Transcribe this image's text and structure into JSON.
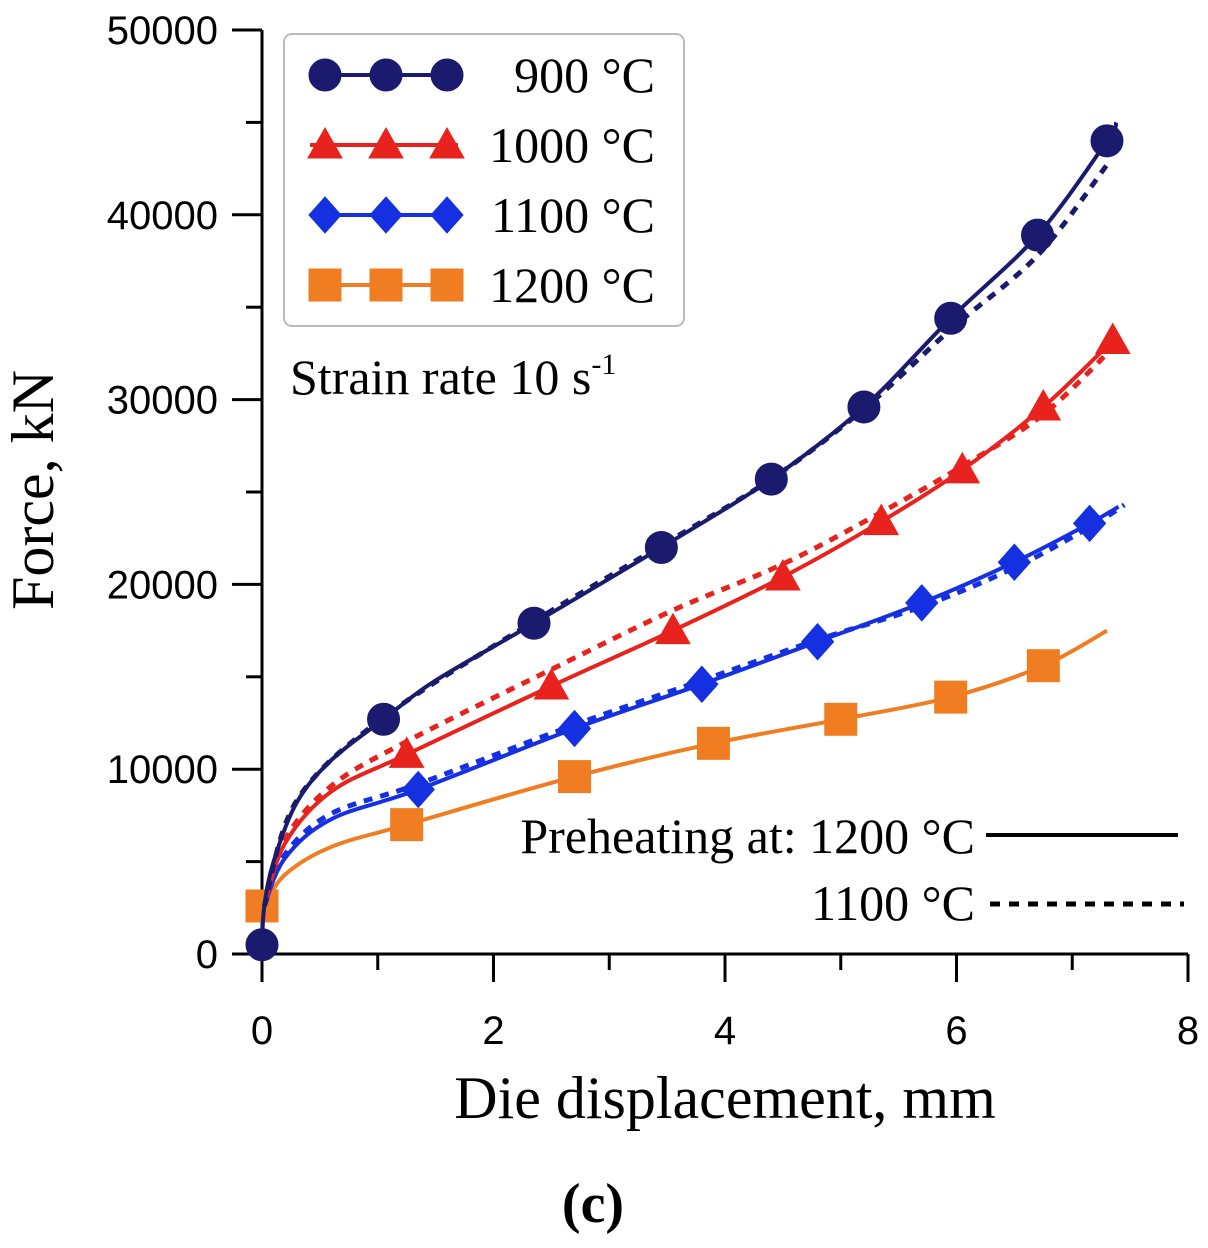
{
  "chart_data": {
    "type": "line",
    "title": "",
    "panel_label": "(c)",
    "xlabel": "Die displacement, mm",
    "ylabel": "Force, kN",
    "xlim": [
      0,
      8
    ],
    "ylim": [
      0,
      50000
    ],
    "x_ticks": [
      "0",
      "2",
      "4",
      "6",
      "8"
    ],
    "y_ticks": [
      "0",
      "10000",
      "20000",
      "30000",
      "40000",
      "50000"
    ],
    "x_tick_values": [
      0,
      2,
      4,
      6,
      8
    ],
    "y_tick_values": [
      0,
      10000,
      20000,
      30000,
      40000,
      50000
    ],
    "annotation": {
      "prefix": "Strain rate 10 s",
      "superscript": "-1"
    },
    "preheating_legend": [
      {
        "label": "Preheating at: 1200 °C",
        "style": "solid"
      },
      {
        "label": "1100 °C",
        "style": "dotted"
      }
    ],
    "series": [
      {
        "name": "900 °C",
        "color": "#1a1a6e",
        "marker": "circle",
        "solid": [
          [
            0,
            500
          ],
          [
            0.02,
            2600
          ],
          [
            0.1,
            5000
          ],
          [
            0.3,
            8200
          ],
          [
            0.6,
            10500
          ],
          [
            1.05,
            12700
          ],
          [
            1.5,
            14800
          ],
          [
            2.35,
            17900
          ],
          [
            3.45,
            22000
          ],
          [
            4.4,
            25700
          ],
          [
            5.2,
            29600
          ],
          [
            5.95,
            34400
          ],
          [
            6.7,
            38900
          ],
          [
            7.3,
            44000
          ],
          [
            7.38,
            45000
          ]
        ],
        "dotted": [
          [
            0.02,
            2600
          ],
          [
            0.3,
            8300
          ],
          [
            1.05,
            12800
          ],
          [
            2.35,
            18000
          ],
          [
            3.45,
            22100
          ],
          [
            4.4,
            25700
          ],
          [
            5.2,
            29500
          ],
          [
            5.95,
            33800
          ],
          [
            6.7,
            37800
          ],
          [
            7.3,
            42700
          ]
        ],
        "markers": [
          [
            0,
            500
          ],
          [
            1.05,
            12700
          ],
          [
            2.35,
            17900
          ],
          [
            3.45,
            22000
          ],
          [
            4.4,
            25700
          ],
          [
            5.2,
            29600
          ],
          [
            5.95,
            34400
          ],
          [
            6.7,
            38900
          ],
          [
            7.3,
            44000
          ]
        ]
      },
      {
        "name": "1000 °C",
        "color": "#e8231e",
        "marker": "triangle",
        "solid": [
          [
            0.02,
            2600
          ],
          [
            0.2,
            6000
          ],
          [
            0.6,
            8800
          ],
          [
            1.25,
            10800
          ],
          [
            2.5,
            14500
          ],
          [
            3.55,
            17500
          ],
          [
            4.5,
            20400
          ],
          [
            5.35,
            23400
          ],
          [
            6.05,
            26200
          ],
          [
            6.75,
            29600
          ],
          [
            7.35,
            33200
          ]
        ],
        "dotted": [
          [
            0.02,
            2600
          ],
          [
            0.2,
            6200
          ],
          [
            0.6,
            9100
          ],
          [
            1.25,
            11500
          ],
          [
            2.5,
            15400
          ],
          [
            3.55,
            18600
          ],
          [
            4.5,
            21100
          ],
          [
            5.35,
            23900
          ],
          [
            6.05,
            26400
          ],
          [
            6.75,
            29200
          ],
          [
            7.35,
            32800
          ]
        ],
        "markers": [
          [
            1.25,
            10800
          ],
          [
            2.5,
            14500
          ],
          [
            3.55,
            17500
          ],
          [
            4.5,
            20400
          ],
          [
            5.35,
            23400
          ],
          [
            6.05,
            26200
          ],
          [
            6.75,
            29600
          ],
          [
            7.35,
            33200
          ]
        ]
      },
      {
        "name": "1100 °C",
        "color": "#1530e0",
        "marker": "diamond",
        "solid": [
          [
            0.02,
            2600
          ],
          [
            0.2,
            5200
          ],
          [
            0.6,
            7300
          ],
          [
            1.35,
            8900
          ],
          [
            2.7,
            12200
          ],
          [
            3.8,
            14600
          ],
          [
            4.8,
            16900
          ],
          [
            5.7,
            19000
          ],
          [
            6.5,
            21200
          ],
          [
            7.15,
            23300
          ],
          [
            7.4,
            24200
          ]
        ],
        "dotted": [
          [
            0.02,
            2600
          ],
          [
            0.2,
            5400
          ],
          [
            0.6,
            7600
          ],
          [
            1.35,
            9200
          ],
          [
            2.7,
            12400
          ],
          [
            3.8,
            14800
          ],
          [
            4.8,
            17000
          ],
          [
            5.7,
            18800
          ],
          [
            6.5,
            20900
          ],
          [
            7.15,
            23100
          ],
          [
            7.45,
            24300
          ]
        ],
        "markers": [
          [
            1.35,
            8900
          ],
          [
            2.7,
            12200
          ],
          [
            3.8,
            14600
          ],
          [
            4.8,
            16900
          ],
          [
            5.7,
            19000
          ],
          [
            6.5,
            21200
          ],
          [
            7.15,
            23300
          ]
        ]
      },
      {
        "name": "1200 °C",
        "color": "#f07d21",
        "marker": "square",
        "solid": [
          [
            0.02,
            2600
          ],
          [
            0.2,
            4300
          ],
          [
            0.6,
            5800
          ],
          [
            1.25,
            7000
          ],
          [
            2.7,
            9600
          ],
          [
            3.9,
            11400
          ],
          [
            5.0,
            12700
          ],
          [
            5.95,
            13900
          ],
          [
            6.75,
            15600
          ],
          [
            7.3,
            17500
          ]
        ],
        "dotted": [],
        "markers": [
          [
            0,
            2600
          ],
          [
            1.25,
            7000
          ],
          [
            2.7,
            9600
          ],
          [
            3.9,
            11400
          ],
          [
            5.0,
            12700
          ],
          [
            5.95,
            13900
          ],
          [
            6.75,
            15600
          ]
        ]
      }
    ]
  }
}
